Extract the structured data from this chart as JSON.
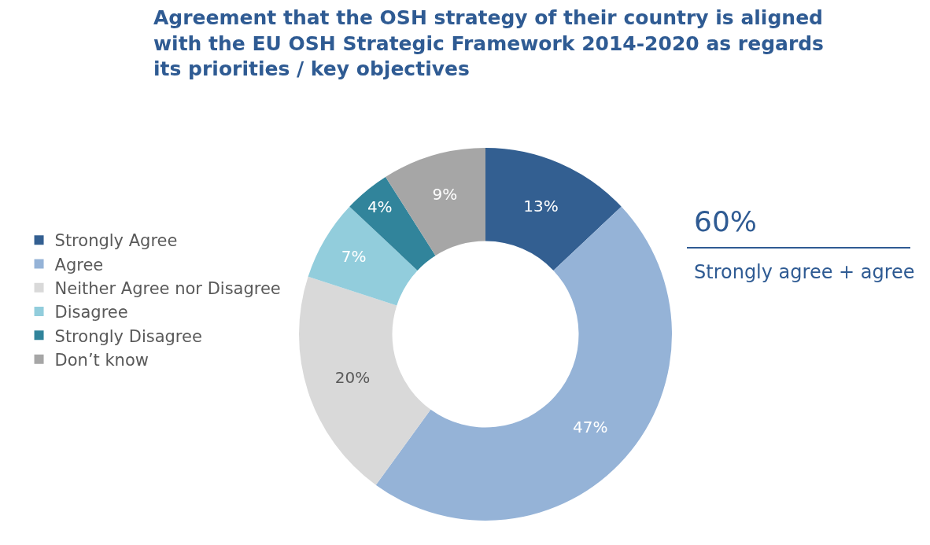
{
  "chart_data": {
    "type": "donut",
    "title": "Agreement that the OSH strategy of their country is aligned\nwith the EU OSH Strategic Framework 2014-2020 as regards\nits priorities / key objectives",
    "categories": [
      "Strongly Agree",
      "Agree",
      "Neither Agree nor Disagree",
      "Disagree",
      "Strongly Disagree",
      "Don’t know"
    ],
    "values": [
      13,
      47,
      20,
      7,
      4,
      9
    ],
    "value_labels": [
      "13%",
      "47%",
      "20%",
      "7%",
      "4%",
      "9%"
    ],
    "colors": [
      "#335f91",
      "#95b3d7",
      "#d9d9d9",
      "#92cddc",
      "#31849b",
      "#a6a6a6"
    ],
    "legend": "left",
    "annotations": [
      "60%",
      "Strongly agree + agree"
    ]
  }
}
